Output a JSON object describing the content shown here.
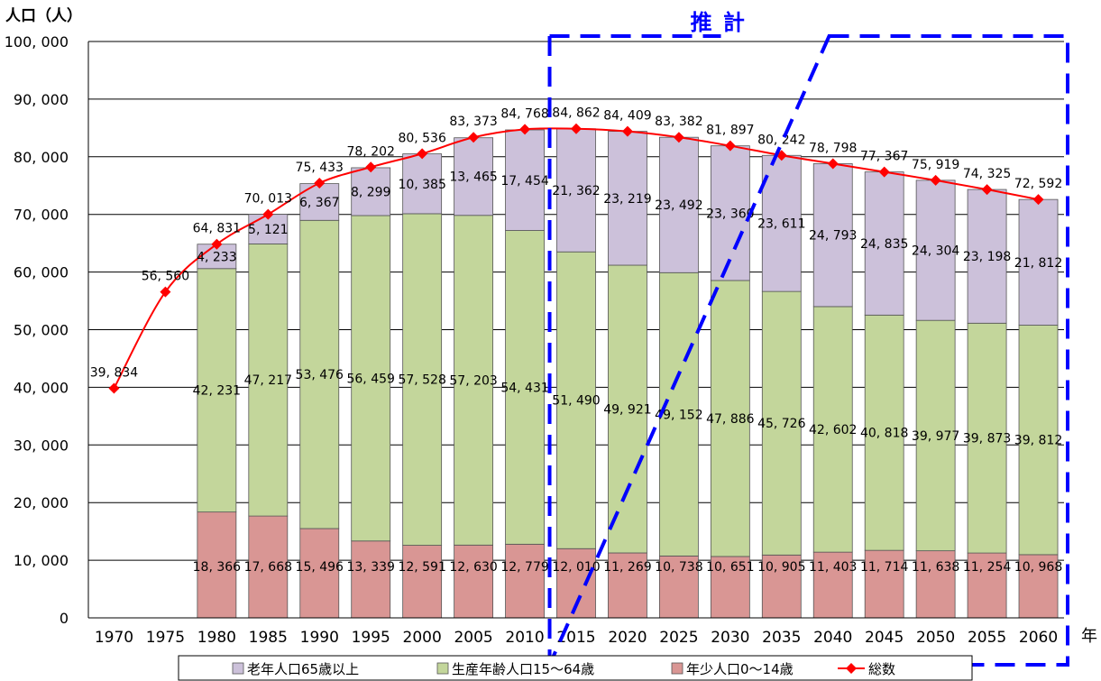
{
  "chart_data": {
    "type": "bar",
    "stacked": true,
    "ylabel": "人口（人）",
    "xlabel": "年",
    "ylim": [
      0,
      100000
    ],
    "yticks": [
      0,
      10000,
      20000,
      30000,
      40000,
      50000,
      60000,
      70000,
      80000,
      90000,
      100000
    ],
    "ytick_labels": [
      "0",
      "10, 000",
      "20, 000",
      "30, 000",
      "40, 000",
      "50, 000",
      "60, 000",
      "70, 000",
      "80, 000",
      "90, 000",
      "100, 000"
    ],
    "categories": [
      "1970",
      "1975",
      "1980",
      "1985",
      "1990",
      "1995",
      "2000",
      "2005",
      "2010",
      "2015",
      "2020",
      "2025",
      "2030",
      "2035",
      "2040",
      "2045",
      "2050",
      "2055",
      "2060"
    ],
    "series": [
      {
        "name": "年少人口0～14歳",
        "kind": "bar",
        "color": "#d99694",
        "values": [
          null,
          null,
          18366,
          17668,
          15496,
          13339,
          12591,
          12630,
          12779,
          12010,
          11269,
          10738,
          10651,
          10905,
          11403,
          11714,
          11638,
          11254,
          10968
        ],
        "labels": [
          "",
          "",
          "18, 366",
          "17, 668",
          "15, 496",
          "13, 339",
          "12, 591",
          "12, 630",
          "12, 779",
          "12, 010",
          "11, 269",
          "10, 738",
          "10, 651",
          "10, 905",
          "11, 403",
          "11, 714",
          "11, 638",
          "11, 254",
          "10, 968"
        ]
      },
      {
        "name": "生産年齢人口15～64歳",
        "kind": "bar",
        "color": "#c3d69b",
        "values": [
          null,
          null,
          42231,
          47217,
          53476,
          56459,
          57528,
          57203,
          54431,
          51490,
          49921,
          49152,
          47886,
          45726,
          42602,
          40818,
          39977,
          39873,
          39812
        ],
        "labels": [
          "",
          "",
          "42, 231",
          "47, 217",
          "53, 476",
          "56, 459",
          "57, 528",
          "57, 203",
          "54, 431",
          "51, 490",
          "49, 921",
          "49, 152",
          "47, 886",
          "45, 726",
          "42, 602",
          "40, 818",
          "39, 977",
          "39, 873",
          "39, 812"
        ]
      },
      {
        "name": "老年人口65歳以上",
        "kind": "bar",
        "color": "#ccc1da",
        "values": [
          null,
          null,
          4233,
          5121,
          6367,
          8299,
          10385,
          13465,
          17454,
          21362,
          23219,
          23492,
          23360,
          23611,
          24793,
          24835,
          24304,
          23198,
          21812
        ],
        "labels": [
          "",
          "",
          "4, 233",
          "5, 121",
          "6, 367",
          "8, 299",
          "10, 385",
          "13, 465",
          "17, 454",
          "21, 362",
          "23, 219",
          "23, 492",
          "23, 360",
          "23, 611",
          "24, 793",
          "24, 835",
          "24, 304",
          "23, 198",
          "21, 812"
        ]
      },
      {
        "name": "総数",
        "kind": "line",
        "color": "#ff0000",
        "values": [
          39834,
          56560,
          64831,
          70013,
          75433,
          78202,
          80536,
          83373,
          84768,
          84862,
          84409,
          83382,
          81897,
          80242,
          78798,
          77367,
          75919,
          74325,
          72592
        ],
        "labels": [
          "39, 834",
          "56, 560",
          "64, 831",
          "70, 013",
          "75, 433",
          "78, 202",
          "80, 536",
          "83, 373",
          "84, 768",
          "84, 862",
          "84, 409",
          "83, 382",
          "81, 897",
          "80, 242",
          "78, 798",
          "77, 367",
          "75, 919",
          "74, 325",
          "72, 592"
        ]
      }
    ],
    "legend": {
      "position": "bottom",
      "order": [
        "老年人口65歳以上",
        "生産年齢人口15～64歳",
        "年少人口0～14歳",
        "総数"
      ]
    },
    "annotation": {
      "text": "推 計",
      "color": "#0000ff",
      "start_category": "2015",
      "end_category": "2060"
    }
  }
}
